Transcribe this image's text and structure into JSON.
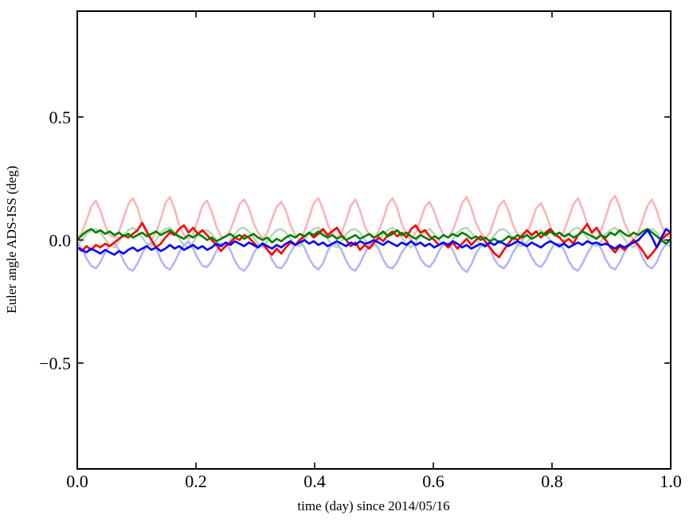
{
  "chart_data": {
    "type": "line",
    "title": "",
    "xlabel": "time (day) since 2014/05/16",
    "ylabel": "Euler angle ADS-ISS (deg)",
    "xlim": [
      0.0,
      1.0
    ],
    "ylim": [
      -0.93,
      0.93
    ],
    "grid": false,
    "legend": "none",
    "background_color": "#ffffff",
    "axis_color": "#000000",
    "xticks": {
      "values": [
        0.0,
        0.2,
        0.4,
        0.6,
        0.8,
        1.0
      ],
      "labels": [
        "0.0",
        "0.2",
        "0.4",
        "0.6",
        "0.8",
        "1.0"
      ]
    },
    "yticks": {
      "values": [
        -0.5,
        0.0,
        0.5
      ],
      "labels": [
        "−0.5",
        "0.0",
        "0.5"
      ]
    },
    "x_sampling": {
      "start": 0.0,
      "step": 0.0078125,
      "count": 129
    },
    "series": [
      {
        "name": "light-red",
        "color": "#ffb2b2",
        "width": 2.5,
        "values": [
          0.005,
          0.03,
          0.08,
          0.135,
          0.16,
          0.12,
          0.06,
          0.02,
          0.01,
          0.035,
          0.09,
          0.145,
          0.17,
          0.13,
          0.065,
          0.025,
          0.0,
          0.03,
          0.085,
          0.15,
          0.175,
          0.125,
          0.06,
          0.02,
          0.005,
          0.025,
          0.08,
          0.14,
          0.16,
          0.115,
          0.055,
          0.015,
          0.01,
          0.04,
          0.09,
          0.145,
          0.165,
          0.13,
          0.07,
          0.03,
          0.005,
          0.03,
          0.085,
          0.135,
          0.155,
          0.12,
          0.06,
          0.02,
          0.0,
          0.035,
          0.09,
          0.15,
          0.17,
          0.125,
          0.065,
          0.025,
          0.01,
          0.03,
          0.08,
          0.14,
          0.165,
          0.12,
          0.055,
          0.02,
          0.005,
          0.035,
          0.085,
          0.145,
          0.17,
          0.13,
          0.065,
          0.025,
          0.0,
          0.03,
          0.08,
          0.135,
          0.155,
          0.115,
          0.06,
          0.02,
          0.01,
          0.04,
          0.09,
          0.15,
          0.175,
          0.13,
          0.07,
          0.03,
          0.005,
          0.03,
          0.085,
          0.14,
          0.16,
          0.12,
          0.06,
          0.02,
          0.0,
          0.025,
          0.075,
          0.13,
          0.15,
          0.11,
          0.055,
          0.015,
          0.01,
          0.035,
          0.09,
          0.145,
          0.17,
          0.125,
          0.065,
          0.025,
          0.005,
          0.04,
          0.095,
          0.155,
          0.18,
          0.135,
          0.07,
          0.03,
          0.0,
          0.03,
          0.085,
          0.14,
          0.165,
          0.12,
          0.06,
          0.02,
          0.01
        ]
      },
      {
        "name": "light-green",
        "color": "#b2d8b2",
        "width": 2.5,
        "values": [
          -0.025,
          0.0,
          0.025,
          0.04,
          0.045,
          0.03,
          0.005,
          -0.02,
          -0.03,
          -0.005,
          0.02,
          0.04,
          0.05,
          0.035,
          0.01,
          -0.015,
          -0.025,
          0.0,
          0.03,
          0.045,
          0.05,
          0.03,
          0.005,
          -0.02,
          -0.03,
          -0.01,
          0.02,
          0.035,
          0.04,
          0.025,
          0.0,
          -0.025,
          -0.025,
          0.0,
          0.025,
          0.045,
          0.05,
          0.035,
          0.01,
          -0.015,
          -0.03,
          -0.005,
          0.02,
          0.04,
          0.045,
          0.03,
          0.005,
          -0.02,
          -0.025,
          0.0,
          0.03,
          0.045,
          0.05,
          0.035,
          0.005,
          -0.02,
          -0.03,
          -0.005,
          0.025,
          0.04,
          0.045,
          0.03,
          0.0,
          -0.025,
          -0.025,
          0.0,
          0.025,
          0.04,
          0.05,
          0.035,
          0.01,
          -0.015,
          -0.03,
          -0.01,
          0.02,
          0.035,
          0.045,
          0.025,
          0.0,
          -0.02,
          -0.025,
          0.0,
          0.03,
          0.045,
          0.05,
          0.03,
          0.005,
          -0.02,
          -0.03,
          -0.005,
          0.02,
          0.04,
          0.045,
          0.03,
          0.005,
          -0.025,
          -0.025,
          -0.01,
          0.015,
          0.035,
          0.04,
          0.025,
          0.0,
          -0.02,
          -0.03,
          0.0,
          0.025,
          0.045,
          0.05,
          0.035,
          0.01,
          -0.015,
          -0.025,
          -0.005,
          0.025,
          0.04,
          0.05,
          0.03,
          0.005,
          -0.02,
          -0.03,
          -0.005,
          0.02,
          0.04,
          0.045,
          0.03,
          0.0,
          -0.02,
          -0.025
        ]
      },
      {
        "name": "light-blue",
        "color": "#b2b2ff",
        "width": 2.5,
        "values": [
          -0.01,
          -0.035,
          -0.075,
          -0.105,
          -0.115,
          -0.09,
          -0.05,
          -0.02,
          -0.015,
          -0.04,
          -0.085,
          -0.115,
          -0.125,
          -0.095,
          -0.055,
          -0.025,
          -0.01,
          -0.03,
          -0.08,
          -0.11,
          -0.12,
          -0.09,
          -0.05,
          -0.02,
          -0.005,
          -0.035,
          -0.075,
          -0.105,
          -0.11,
          -0.085,
          -0.045,
          -0.015,
          -0.015,
          -0.04,
          -0.085,
          -0.115,
          -0.125,
          -0.1,
          -0.055,
          -0.025,
          -0.01,
          -0.035,
          -0.08,
          -0.11,
          -0.115,
          -0.09,
          -0.05,
          -0.02,
          -0.005,
          -0.03,
          -0.075,
          -0.105,
          -0.12,
          -0.095,
          -0.045,
          -0.015,
          -0.015,
          -0.04,
          -0.085,
          -0.115,
          -0.125,
          -0.095,
          -0.055,
          -0.02,
          -0.01,
          -0.035,
          -0.08,
          -0.11,
          -0.115,
          -0.09,
          -0.05,
          -0.025,
          -0.005,
          -0.03,
          -0.075,
          -0.1,
          -0.11,
          -0.085,
          -0.045,
          -0.015,
          -0.015,
          -0.04,
          -0.085,
          -0.115,
          -0.13,
          -0.1,
          -0.055,
          -0.025,
          -0.01,
          -0.035,
          -0.08,
          -0.105,
          -0.115,
          -0.09,
          -0.05,
          -0.02,
          -0.005,
          -0.03,
          -0.07,
          -0.1,
          -0.11,
          -0.085,
          -0.045,
          -0.015,
          -0.015,
          -0.04,
          -0.085,
          -0.115,
          -0.125,
          -0.095,
          -0.055,
          -0.025,
          -0.01,
          -0.035,
          -0.08,
          -0.11,
          -0.12,
          -0.09,
          -0.05,
          -0.02,
          -0.005,
          -0.03,
          -0.075,
          -0.105,
          -0.115,
          -0.09,
          -0.045,
          -0.015,
          -0.01
        ]
      },
      {
        "name": "red",
        "color": "#ff0000",
        "width": 2.6,
        "values": [
          -0.03,
          -0.045,
          -0.025,
          -0.04,
          -0.02,
          -0.03,
          -0.015,
          -0.025,
          -0.01,
          0.005,
          0.02,
          0.01,
          0.025,
          0.04,
          0.07,
          0.035,
          0.0,
          -0.03,
          -0.015,
          0.01,
          0.03,
          0.02,
          0.045,
          0.06,
          0.03,
          0.05,
          0.025,
          0.04,
          0.02,
          0.0,
          -0.02,
          -0.045,
          -0.025,
          -0.01,
          0.01,
          0.0,
          0.02,
          0.01,
          -0.01,
          -0.03,
          -0.015,
          -0.04,
          -0.06,
          -0.035,
          -0.055,
          -0.03,
          -0.01,
          -0.02,
          0.0,
          0.015,
          0.03,
          0.01,
          0.025,
          0.045,
          0.02,
          0.035,
          0.05,
          0.02,
          0.0,
          -0.025,
          -0.01,
          -0.04,
          -0.02,
          -0.035,
          -0.01,
          0.01,
          -0.005,
          0.02,
          0.035,
          0.015,
          0.03,
          0.01,
          0.045,
          0.06,
          0.03,
          0.04,
          0.015,
          0.0,
          -0.02,
          -0.01,
          -0.03,
          -0.01,
          -0.035,
          -0.015,
          0.005,
          -0.02,
          0.0,
          0.015,
          -0.005,
          -0.03,
          -0.055,
          -0.07,
          -0.04,
          -0.015,
          0.01,
          0.0,
          0.02,
          0.04,
          0.02,
          0.035,
          0.01,
          0.03,
          0.045,
          0.025,
          0.01,
          -0.01,
          0.005,
          -0.015,
          0.02,
          0.04,
          0.065,
          0.03,
          0.05,
          0.02,
          0.0,
          -0.03,
          -0.05,
          -0.025,
          -0.04,
          -0.02,
          0.0,
          -0.02,
          -0.045,
          -0.075,
          -0.055,
          -0.03,
          0.0,
          0.02,
          0.03
        ]
      },
      {
        "name": "green",
        "color": "#007f00",
        "width": 2.6,
        "values": [
          0.0,
          0.02,
          0.035,
          0.045,
          0.03,
          0.04,
          0.025,
          0.035,
          0.02,
          0.03,
          0.015,
          0.025,
          0.01,
          0.02,
          0.03,
          0.015,
          0.025,
          0.035,
          0.02,
          0.03,
          0.04,
          0.025,
          0.015,
          0.005,
          0.02,
          0.01,
          0.025,
          0.015,
          0.0,
          0.01,
          -0.005,
          0.005,
          0.015,
          0.025,
          0.01,
          0.02,
          0.005,
          0.015,
          0.025,
          0.01,
          0.0,
          0.01,
          -0.01,
          0.005,
          -0.005,
          0.01,
          0.02,
          0.01,
          0.025,
          0.015,
          0.03,
          0.02,
          0.035,
          0.02,
          0.01,
          0.02,
          0.005,
          0.015,
          0.0,
          0.01,
          0.02,
          0.005,
          0.015,
          0.025,
          0.01,
          0.02,
          0.035,
          0.015,
          0.025,
          0.04,
          0.02,
          0.03,
          0.015,
          0.005,
          0.02,
          0.01,
          0.0,
          0.015,
          0.005,
          0.02,
          0.01,
          0.025,
          0.015,
          0.03,
          0.02,
          0.005,
          0.015,
          0.0,
          0.01,
          -0.005,
          0.005,
          -0.01,
          0.0,
          0.015,
          0.005,
          0.02,
          0.01,
          0.02,
          0.005,
          0.015,
          0.03,
          0.02,
          0.035,
          0.02,
          0.03,
          0.015,
          0.025,
          0.01,
          0.02,
          0.035,
          0.025,
          0.015,
          0.005,
          0.02,
          0.01,
          0.03,
          0.02,
          0.04,
          0.025,
          0.015,
          0.03,
          0.02,
          0.035,
          0.045,
          0.03,
          0.015,
          0.0,
          -0.015,
          0.005
        ]
      },
      {
        "name": "blue",
        "color": "#0000ff",
        "width": 2.6,
        "values": [
          -0.03,
          -0.04,
          -0.05,
          -0.035,
          -0.045,
          -0.055,
          -0.04,
          -0.05,
          -0.06,
          -0.045,
          -0.055,
          -0.04,
          -0.03,
          -0.045,
          -0.035,
          -0.025,
          -0.04,
          -0.03,
          -0.045,
          -0.035,
          -0.02,
          -0.035,
          -0.025,
          -0.04,
          -0.03,
          -0.02,
          -0.035,
          -0.025,
          -0.04,
          -0.03,
          -0.015,
          -0.025,
          -0.01,
          -0.02,
          -0.005,
          -0.015,
          -0.025,
          -0.01,
          -0.02,
          -0.03,
          -0.015,
          -0.025,
          -0.035,
          -0.02,
          -0.03,
          -0.015,
          -0.005,
          -0.02,
          -0.01,
          0.0,
          -0.015,
          -0.005,
          -0.02,
          -0.01,
          -0.025,
          -0.015,
          -0.005,
          -0.015,
          -0.025,
          -0.01,
          -0.02,
          -0.005,
          -0.015,
          -0.01,
          0.0,
          -0.01,
          -0.02,
          -0.005,
          -0.015,
          -0.025,
          -0.01,
          -0.02,
          -0.005,
          -0.02,
          -0.01,
          -0.025,
          -0.015,
          -0.03,
          -0.02,
          -0.01,
          -0.02,
          -0.005,
          -0.015,
          -0.03,
          -0.02,
          -0.035,
          -0.025,
          -0.015,
          -0.025,
          -0.01,
          -0.02,
          -0.005,
          -0.015,
          -0.025,
          -0.015,
          -0.005,
          -0.015,
          -0.025,
          -0.01,
          -0.02,
          -0.03,
          -0.015,
          -0.005,
          -0.015,
          -0.025,
          -0.015,
          -0.03,
          -0.02,
          -0.01,
          -0.02,
          -0.005,
          -0.015,
          -0.01,
          -0.02,
          -0.015,
          -0.025,
          -0.035,
          -0.02,
          -0.03,
          -0.02,
          -0.01,
          0.0,
          0.02,
          0.04,
          0.01,
          -0.03,
          0.01,
          0.045,
          0.03
        ]
      }
    ]
  }
}
